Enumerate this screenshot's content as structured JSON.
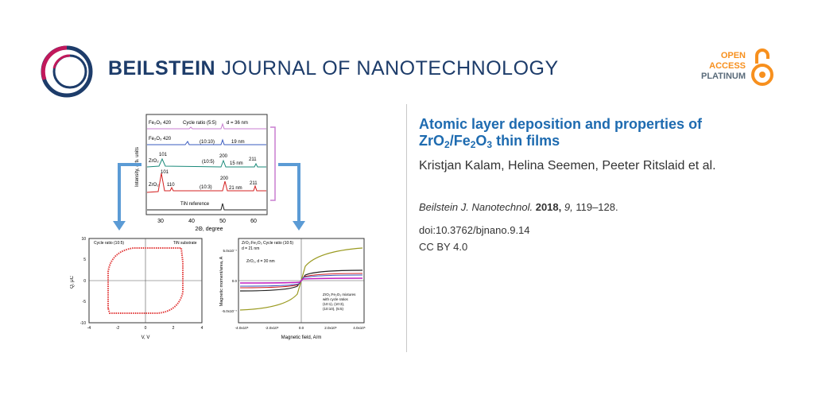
{
  "header": {
    "journal_bold": "BEILSTEIN",
    "journal_rest": " JOURNAL OF NANOTECHNOLOGY",
    "open": "OPEN",
    "access": "ACCESS",
    "platinum": "PLATINUM",
    "colors": {
      "navy": "#1d3c6a",
      "orange": "#f7901e",
      "magenta": "#c2185b",
      "blue": "#1e6bb0"
    }
  },
  "article": {
    "title_pre": "Atomic layer deposition and properties of ",
    "title_zr": "ZrO",
    "title_sub2a": "2",
    "title_slash": "/Fe",
    "title_sub2b": "2",
    "title_o": "O",
    "title_sub3": "3",
    "title_post": " thin films",
    "authors": "Kristjan Kalam, Helina Seemen, Peeter Ritslaid et al.",
    "journal_abbrev": "Beilstein J. Nanotechnol.",
    "year": "2018,",
    "volume": "9,",
    "pages": " 119–128.",
    "doi": "doi:10.3762/bjnano.9.14",
    "license": "CC BY 4.0"
  },
  "figure": {
    "xrd": {
      "ylabel": "Intensity, arb. units",
      "xlabel": "2Θ, degree",
      "xticks": [
        "30",
        "40",
        "50",
        "60"
      ],
      "labels": {
        "l1": "Fe₂O₃ 420",
        "l1b": "Cycle ratio (5:5)",
        "l1c": "d = 36 nm",
        "l2": "Fe₂O₃ 420",
        "l2b": "(10:10)",
        "l2c": "19 nm",
        "l3a": "101",
        "l3b": "ZrO₂",
        "l3c": "(10:5)",
        "l3d": "200",
        "l3e": "15 nm",
        "l3f": "211",
        "l4a": "101",
        "l4b": "ZrO₂",
        "l4c": "110",
        "l4d": "(10:3)",
        "l4e": "200",
        "l4f": "21 nm",
        "l4g": "211",
        "l5": "TiN reference"
      }
    },
    "pe": {
      "title_left": "Cycle ratio (10:5)",
      "title_right": "TiN substrate",
      "ylabel": "Q, μC",
      "xlabel": "V, V",
      "xticks": [
        "-4",
        "-2",
        "0",
        "2",
        "4"
      ],
      "yticks": [
        "10",
        "5",
        "0",
        "-5",
        "-10"
      ]
    },
    "mag": {
      "title1": "ZrO₂:Fe₂O₃ Cycle ratio (10:5)",
      "title2": "d = 21 nm",
      "label2": "ZrO₂, d = 30 nm",
      "legend1": "ZrO₂:Fe₂O₃ mixtures",
      "legend2": "with cycle ratios",
      "legend3": "(10:1), (10:3),",
      "legend4": "(10:10), (5:5)",
      "ylabel": "Magnetic moment/area, A",
      "xlabel": "Magnetic field, A/m",
      "yticks": [
        "5.0x10⁻⁷",
        "0.0",
        "-5.0x10⁻⁷"
      ],
      "xticks": [
        "-4.0x10⁵",
        "-2.0x10⁵",
        "0.0",
        "2.0x10⁵",
        "4.0x10⁵"
      ]
    }
  }
}
